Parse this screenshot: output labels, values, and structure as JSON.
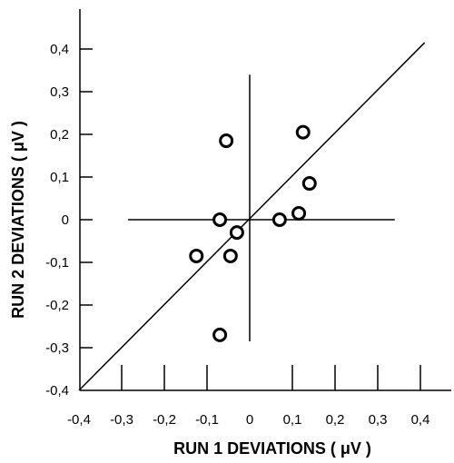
{
  "chart_data": {
    "type": "scatter",
    "title": "",
    "xlabel": "RUN 1 DEVIATIONS ( μV )",
    "ylabel": "RUN 2 DEVIATIONS ( μV )",
    "xlim": [
      -0.4,
      0.48
    ],
    "ylim": [
      -0.4,
      0.45
    ],
    "x_ticks": [
      -0.4,
      -0.3,
      -0.2,
      -0.1,
      0,
      0.1,
      0.2,
      0.3,
      0.4
    ],
    "x_tick_labels": [
      "-0,4",
      "-0,3",
      "-0,2",
      "-0,1",
      "0",
      "0,1",
      "0,2",
      "0,3",
      "0,4"
    ],
    "y_ticks": [
      -0.4,
      -0.3,
      -0.2,
      -0.1,
      0,
      0.1,
      0.2,
      0.3,
      0.4
    ],
    "y_tick_labels": [
      "-0,4",
      "-0,3",
      "-0,2",
      "-0,1",
      "0",
      "0,1",
      "0,2",
      "0,3",
      "0,4"
    ],
    "grid": false,
    "reference_lines": {
      "diagonal": {
        "x": [
          -0.4,
          0.41
        ],
        "y": [
          -0.4,
          0.415
        ]
      },
      "horizontal_zero": {
        "x": [
          -0.285,
          0.34
        ],
        "y": 0
      },
      "vertical_zero": {
        "x": 0,
        "y": [
          -0.285,
          0.34
        ]
      }
    },
    "series": [
      {
        "x": [
          -0.055,
          0.125,
          0.14,
          -0.07,
          0.07,
          0.115,
          -0.03,
          -0.125,
          -0.045,
          -0.07
        ],
        "y": [
          0.185,
          0.205,
          0.085,
          0.0,
          0.0,
          0.015,
          -0.03,
          -0.085,
          -0.085,
          -0.27
        ]
      }
    ]
  }
}
